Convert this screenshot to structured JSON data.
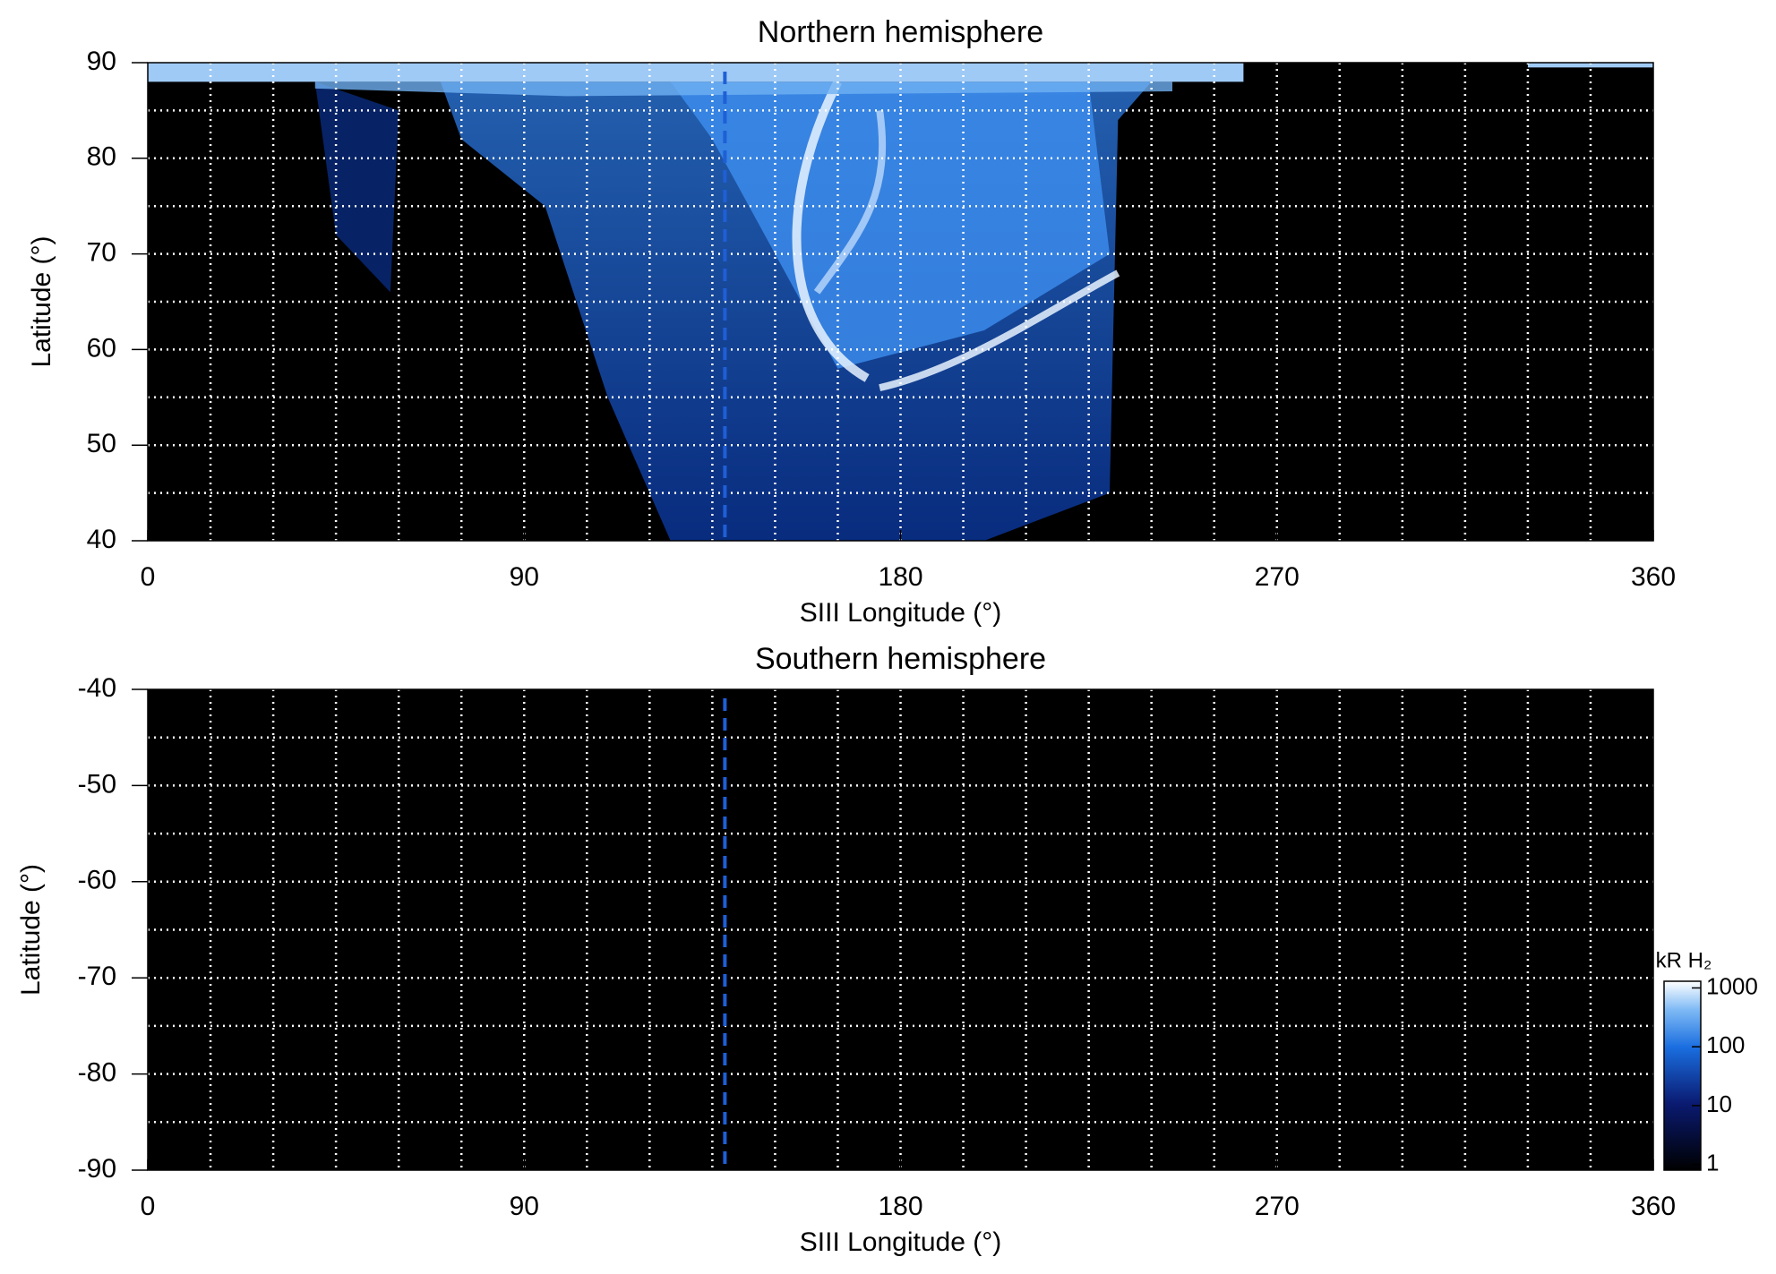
{
  "chart_data": [
    {
      "type": "heatmap",
      "title": "Northern hemisphere",
      "x_label": "SIII Longitude (°)",
      "y_label": "Latitude (°)",
      "xlim": [
        0,
        360
      ],
      "ylim": [
        40,
        90
      ],
      "xticks": [
        0,
        90,
        180,
        270,
        360
      ],
      "yticks": [
        40,
        50,
        60,
        70,
        80,
        90
      ],
      "xgrid": [
        15,
        30,
        45,
        60,
        75,
        90,
        105,
        120,
        135,
        150,
        165,
        180,
        195,
        210,
        225,
        240,
        255,
        270,
        285,
        300,
        315,
        330,
        345
      ],
      "ygrid": [
        45,
        50,
        55,
        60,
        65,
        70,
        75,
        80,
        85
      ],
      "grid_color": "#ffffff",
      "marker_longitude": 138,
      "marker_color": "#1f5fd6"
    },
    {
      "type": "heatmap",
      "title": "Southern hemisphere",
      "x_label": "SIII Longitude (°)",
      "y_label": "Latitude (°)",
      "xlim": [
        0,
        360
      ],
      "ylim": [
        -90,
        -40
      ],
      "xticks": [
        0,
        90,
        180,
        270,
        360
      ],
      "yticks": [
        -40,
        -50,
        -60,
        -70,
        -80,
        -90
      ],
      "xgrid": [
        15,
        30,
        45,
        60,
        75,
        90,
        105,
        120,
        135,
        150,
        165,
        180,
        195,
        210,
        225,
        240,
        255,
        270,
        285,
        300,
        315,
        330,
        345
      ],
      "ygrid": [
        -45,
        -50,
        -55,
        -60,
        -65,
        -70,
        -75,
        -80,
        -85
      ],
      "grid_color": "#ffffff",
      "marker_longitude": 138,
      "marker_color": "#1f5fd6",
      "colorbar": {
        "label": "kR H₂",
        "log": true,
        "range": [
          0.8,
          1300
        ],
        "ticks": [
          1,
          10,
          100,
          1000
        ]
      }
    }
  ]
}
